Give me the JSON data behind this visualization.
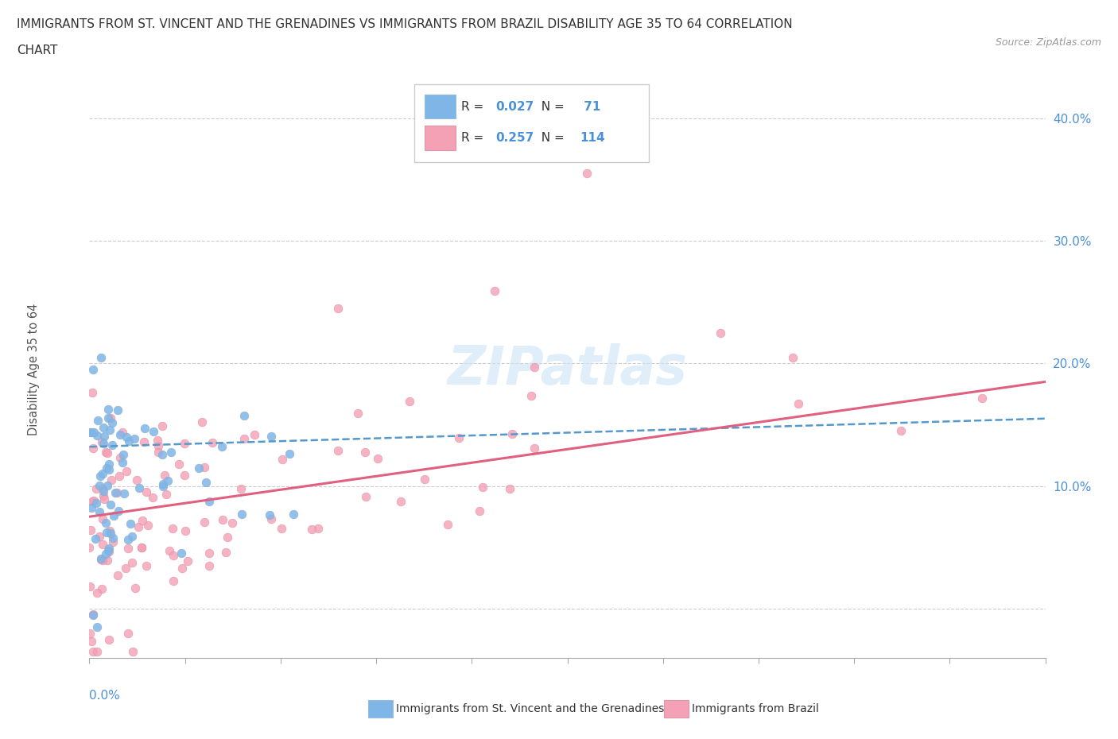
{
  "title_line1": "IMMIGRANTS FROM ST. VINCENT AND THE GRENADINES VS IMMIGRANTS FROM BRAZIL DISABILITY AGE 35 TO 64 CORRELATION",
  "title_line2": "CHART",
  "source": "Source: ZipAtlas.com",
  "ylabel": "Disability Age 35 to 64",
  "R1": 0.027,
  "N1": 71,
  "R2": 0.257,
  "N2": 114,
  "xlim": [
    0.0,
    0.25
  ],
  "ylim": [
    -0.04,
    0.43
  ],
  "color_blue": "#7EB6E8",
  "color_pink": "#F4A0B5",
  "color_blue_line": "#5599CC",
  "color_pink_line": "#E06080",
  "color_blue_text": "#4A90D9",
  "legend1_label": "Immigrants from St. Vincent and the Grenadines",
  "legend2_label": "Immigrants from Brazil",
  "yticks": [
    0.0,
    0.1,
    0.2,
    0.3,
    0.4
  ],
  "ytick_labels": [
    "",
    "10.0%",
    "20.0%",
    "30.0%",
    "40.0%"
  ],
  "blue_trend": [
    0.0,
    0.25,
    0.132,
    0.155
  ],
  "pink_trend": [
    0.0,
    0.25,
    0.075,
    0.185
  ]
}
